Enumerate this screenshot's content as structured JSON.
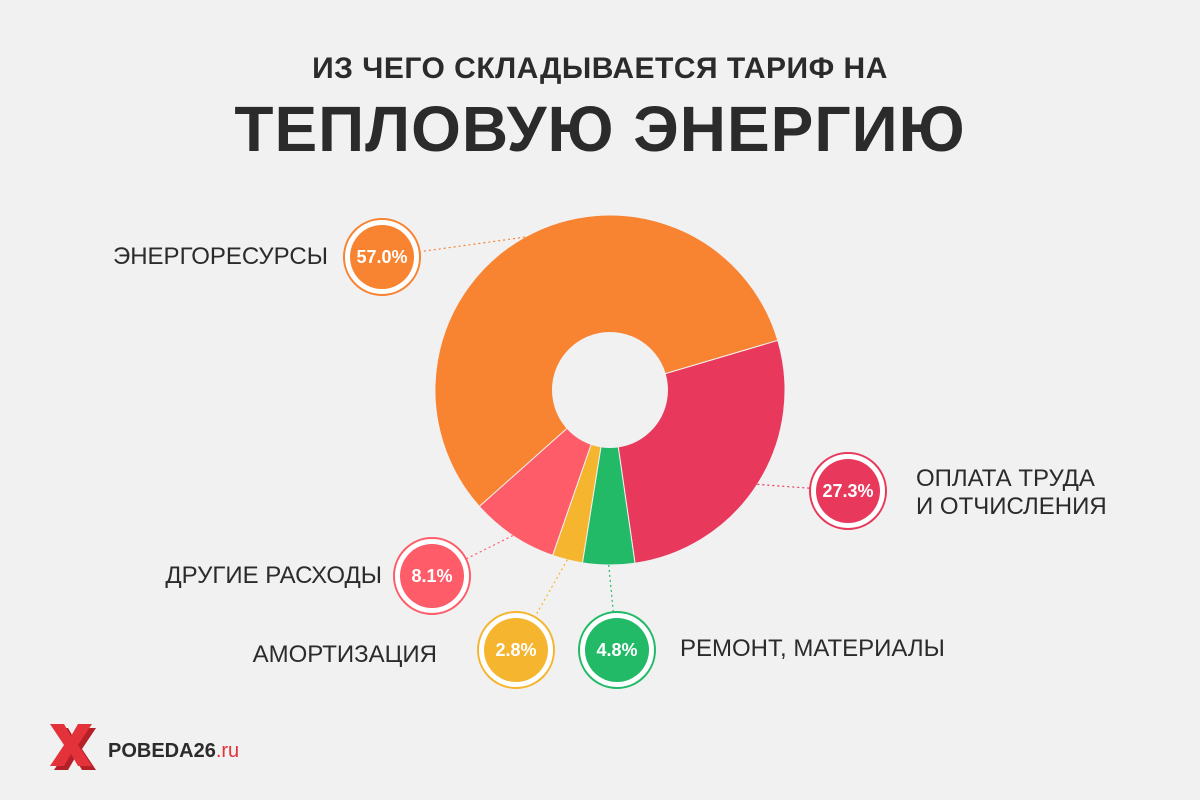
{
  "header": {
    "subtitle": "ИЗ ЧЕГО СКЛАДЫВАЕТСЯ ТАРИФ НА",
    "title": "ТЕПЛОВУЮ ЭНЕРГИЮ"
  },
  "chart_data": {
    "type": "pie",
    "title": "ИЗ ЧЕГО СКЛАДЫВАЕТСЯ ТАРИФ НА ТЕПЛОВУЮ ЭНЕРГИЮ",
    "style": "donut",
    "slices": [
      {
        "label": "ОПЛАТА ТРУДА И ОТЧИСЛЕНИЯ",
        "label_lines": [
          "ОПЛАТА ТРУДА",
          "И ОТЧИСЛЕНИЯ"
        ],
        "value": 27.3,
        "text": "27.3%",
        "color": "#e8395c"
      },
      {
        "label": "РЕМОНТ, МАТЕРИАЛЫ",
        "label_lines": [
          "РЕМОНТ, МАТЕРИАЛЫ"
        ],
        "value": 4.8,
        "text": "4.8%",
        "color": "#22ba67"
      },
      {
        "label": "АМОРТИЗАЦИЯ",
        "label_lines": [
          "АМОРТИЗАЦИЯ"
        ],
        "value": 2.8,
        "text": "2.8%",
        "color": "#f5b52e"
      },
      {
        "label": "ДРУГИЕ РАСХОДЫ",
        "label_lines": [
          "ДРУГИЕ РАСХОДЫ"
        ],
        "value": 8.1,
        "text": "8.1%",
        "color": "#ff5c6a"
      },
      {
        "label": "ЭНЕРГОРЕСУРСЫ",
        "label_lines": [
          "ЭНЕРГОРЕСУРСЫ"
        ],
        "value": 57.0,
        "text": "57.0%",
        "color": "#f88331"
      }
    ]
  },
  "footer": {
    "brand_name": "POBEDA26",
    "brand_tld": ".ru",
    "logo_icon": "pobeda-logo-icon",
    "logo_color": "#e3323a"
  }
}
